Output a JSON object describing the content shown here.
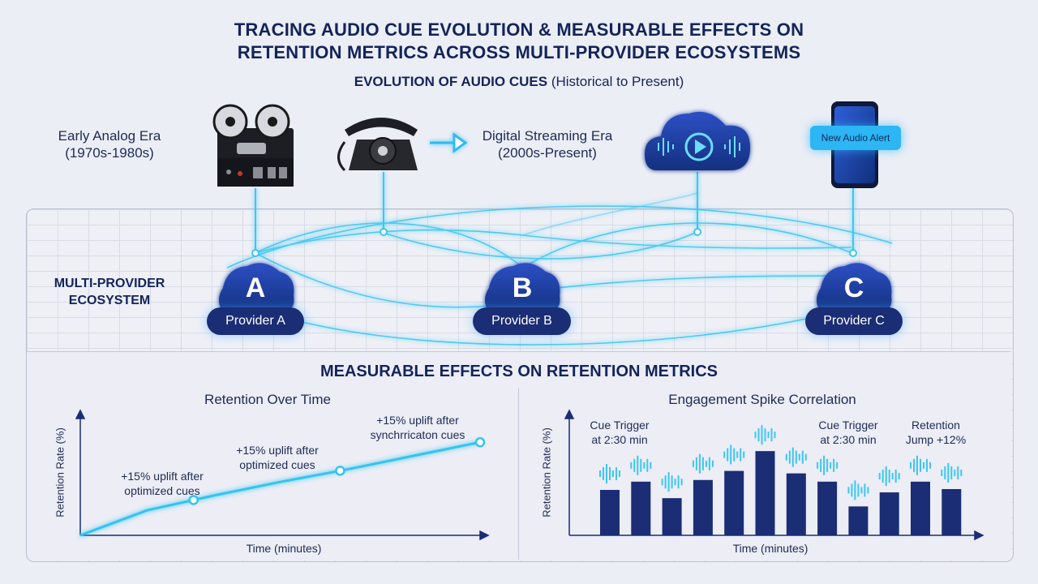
{
  "header": {
    "title_line1": "TRACING AUDIO CUE EVOLUTION & MEASURABLE EFFECTS ON",
    "title_line2": "RETENTION METRICS ACROSS MULTI-PROVIDER ECOSYSTEMS",
    "subtitle_bold": "EVOLUTION OF AUDIO CUES",
    "subtitle_rest": "(Historical to Present)"
  },
  "eras": {
    "analog_line1": "Early Analog Era",
    "analog_line2": "(1970s-1980s)",
    "digital_line1": "Digital Streaming Era",
    "digital_line2": "(2000s-Present)"
  },
  "icons": {
    "tape": "reel-to-reel-tape-recorder-icon",
    "phone": "rotary-telephone-icon",
    "arrow": "arrow-right-icon",
    "cloud": "cloud-play-icon",
    "smartphone": "smartphone-icon"
  },
  "alert": "New Audio Alert",
  "ecosystem": {
    "label_line1": "MULTI-PROVIDER",
    "label_line2": "ECOSYSTEM",
    "providers": [
      {
        "letter": "A",
        "name": "Provider A"
      },
      {
        "letter": "B",
        "name": "Provider B"
      },
      {
        "letter": "C",
        "name": "Provider C"
      }
    ]
  },
  "metrics_title": "MEASURABLE EFFECTS ON RETENTION METRICS",
  "colors": {
    "navy": "#1a2d75",
    "cyan": "#31c4f0",
    "text": "#13245a"
  },
  "chart_data": [
    {
      "type": "line",
      "title": "Retention Over Time",
      "xlabel": "Time (minutes)",
      "ylabel": "Retention Rate (%)",
      "annotations": [
        {
          "line1": "+15% uplift after",
          "line2": "optimized cues"
        },
        {
          "line1": "+15% uplift after",
          "line2": "optimized cues"
        },
        {
          "line1": "+15% uplift after",
          "line2": "synchrricaton cues"
        }
      ],
      "x": [
        0,
        1,
        2,
        3,
        4,
        5,
        6
      ],
      "y": [
        0,
        22,
        35,
        47,
        58,
        70,
        82
      ],
      "markers_at_x": [
        1.7,
        3.9,
        6.0
      ]
    },
    {
      "type": "bar",
      "title": "Engagement Spike Correlation",
      "xlabel": "Time (minutes)",
      "ylabel": "Retention Rate (%)",
      "annotations": [
        {
          "line1": "Cue Trigger",
          "line2": "at 2:30 min"
        },
        {
          "line1": "Cue Trigger",
          "line2": "at 2:30 min"
        },
        {
          "line1": "Retention",
          "line2": "Jump +12%"
        }
      ],
      "values": [
        55,
        65,
        45,
        67,
        78,
        102,
        75,
        65,
        35,
        52,
        65,
        56
      ]
    }
  ]
}
